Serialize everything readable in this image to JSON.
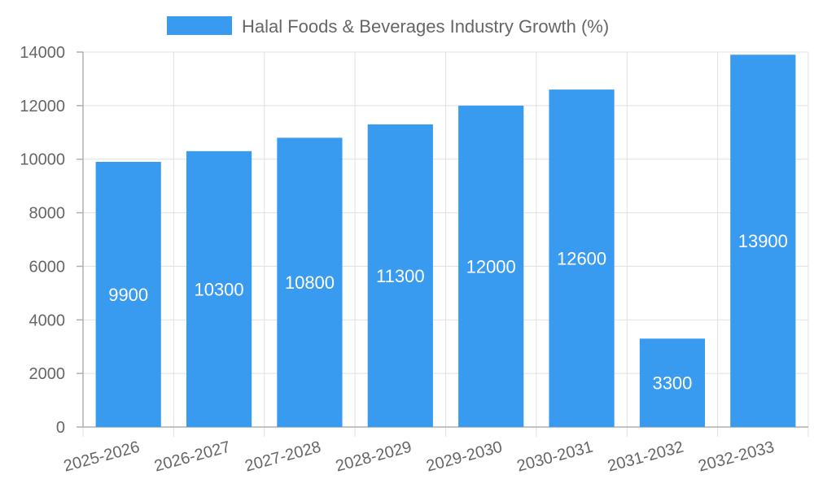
{
  "chart_data": {
    "type": "bar",
    "title": "",
    "legend_position": "top",
    "series": [
      {
        "name": "Halal Foods & Beverages Industry Growth (%)",
        "color": "#389bf0",
        "values": [
          9900,
          10300,
          10800,
          11300,
          12000,
          12600,
          3300,
          13900
        ]
      }
    ],
    "categories": [
      "2025-2026",
      "2026-2027",
      "2027-2028",
      "2028-2029",
      "2029-2030",
      "2030-2031",
      "2031-2032",
      "2032-2033"
    ],
    "xlabel": "",
    "ylabel": "",
    "ylim": [
      0,
      14000
    ],
    "yticks": [
      0,
      2000,
      4000,
      6000,
      8000,
      10000,
      12000,
      14000
    ],
    "grid": true,
    "data_labels": true
  }
}
